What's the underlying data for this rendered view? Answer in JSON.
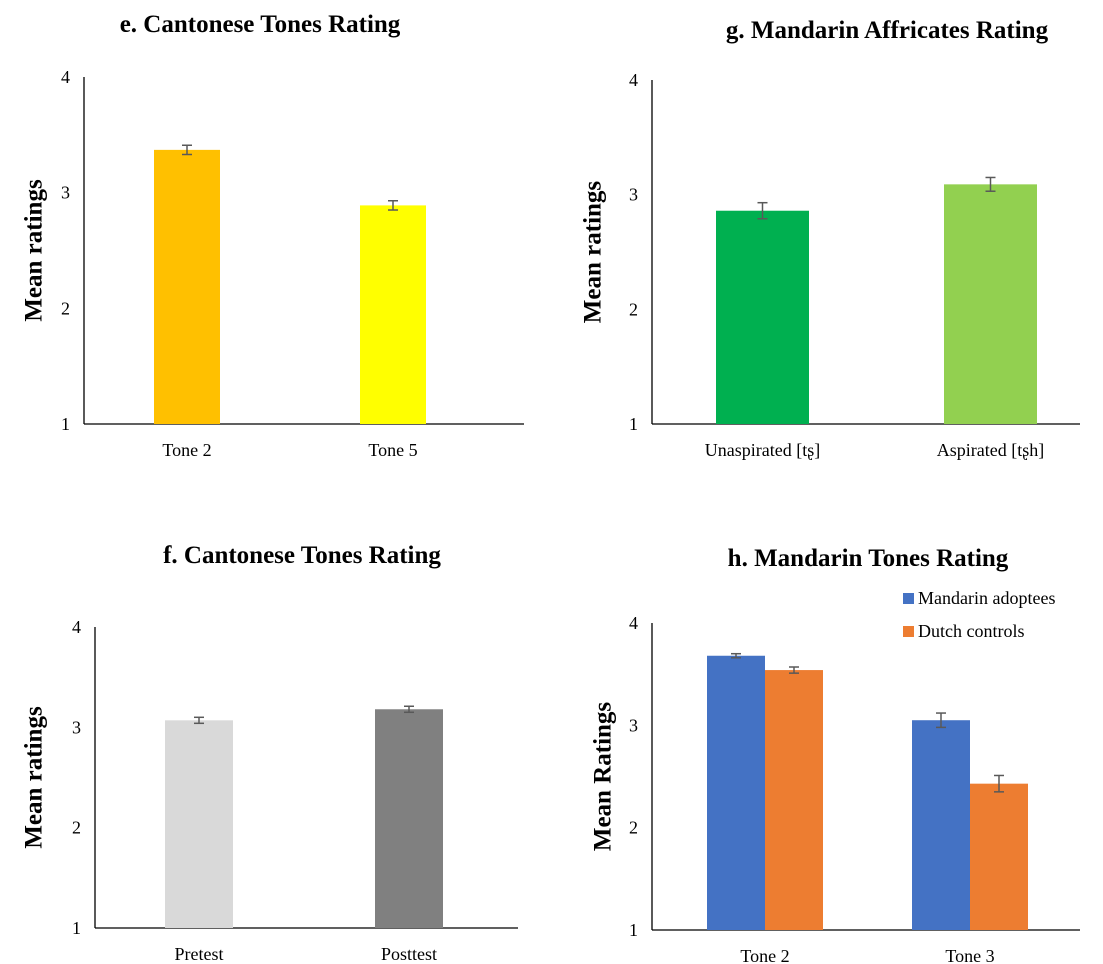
{
  "colors": {
    "axis": "#000000",
    "error_bar": "#595959",
    "text": "#000000"
  },
  "chart_data": [
    {
      "id": "e",
      "type": "bar",
      "title": "e. Cantonese Tones Rating",
      "ylabel": "Mean ratings",
      "xlabel": "",
      "categories": [
        "Tone 2",
        "Tone 5"
      ],
      "series": [
        {
          "values": [
            3.37,
            2.89
          ],
          "errors": [
            0.04,
            0.04
          ],
          "colors": [
            "#FFC000",
            "#FFFF00"
          ]
        }
      ],
      "ylim": [
        1,
        4
      ],
      "yticks": [
        "1",
        "2",
        "3",
        "4"
      ],
      "grid": false,
      "legend": null
    },
    {
      "id": "g",
      "type": "bar",
      "title": "g. Mandarin Affricates Rating",
      "ylabel": "Mean ratings",
      "xlabel": "",
      "categories": [
        "Unaspirated [tʂ]",
        "Aspirated [tʂh]"
      ],
      "series": [
        {
          "values": [
            2.86,
            3.09
          ],
          "errors": [
            0.07,
            0.06
          ],
          "colors": [
            "#00B050",
            "#92D050"
          ]
        }
      ],
      "ylim": [
        1,
        4
      ],
      "yticks": [
        "1",
        "2",
        "3",
        "4"
      ],
      "grid": false,
      "legend": null
    },
    {
      "id": "f",
      "type": "bar",
      "title": "f. Cantonese Tones Rating",
      "ylabel": "Mean ratings",
      "xlabel": "",
      "categories": [
        "Pretest",
        "Posttest"
      ],
      "series": [
        {
          "values": [
            3.07,
            3.18
          ],
          "errors": [
            0.03,
            0.03
          ],
          "colors": [
            "#D9D9D9",
            "#808080"
          ]
        }
      ],
      "ylim": [
        1,
        4
      ],
      "yticks": [
        "1",
        "2",
        "3",
        "4"
      ],
      "grid": false,
      "legend": null
    },
    {
      "id": "h",
      "type": "bar",
      "title": "h. Mandarin Tones Rating",
      "ylabel": "Mean Ratings",
      "xlabel": "",
      "categories": [
        "Tone 2",
        "Tone 3"
      ],
      "series": [
        {
          "name": "Mandarin adoptees",
          "values": [
            3.68,
            3.05
          ],
          "errors": [
            0.02,
            0.07
          ],
          "color": "#4472C4"
        },
        {
          "name": "Dutch controls",
          "values": [
            3.54,
            2.43
          ],
          "errors": [
            0.03,
            0.08
          ],
          "color": "#ED7D31"
        }
      ],
      "ylim": [
        1,
        4
      ],
      "yticks": [
        "1",
        "2",
        "3",
        "4"
      ],
      "grid": false,
      "legend": "top-right"
    }
  ]
}
